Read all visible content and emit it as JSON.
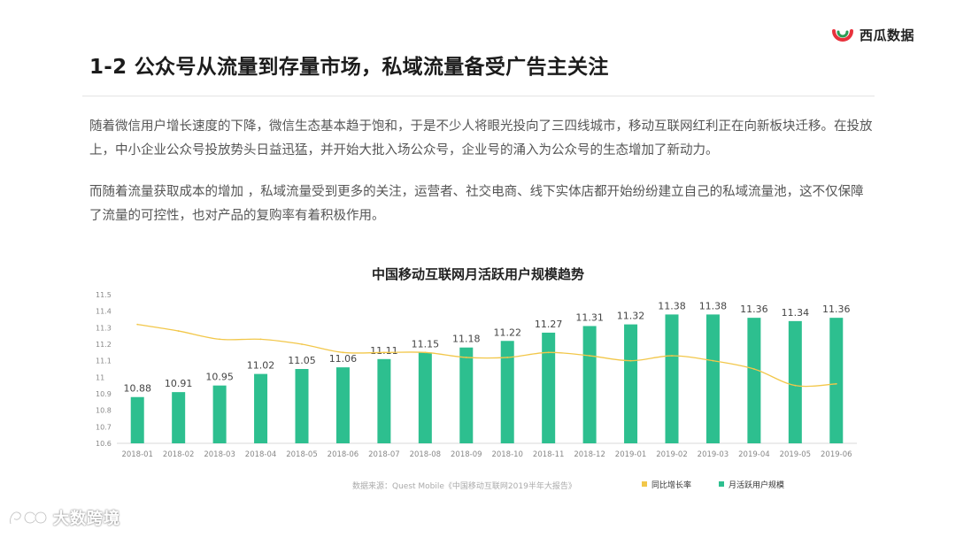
{
  "brand": {
    "name": "西瓜数据",
    "icon": "watermelon-logo-icon"
  },
  "slide": {
    "title": "1-2 公众号从流量到存量市场，私域流量备受广告主关注",
    "paragraphs": [
      "随着微信用户增长速度的下降，微信生态基本趋于饱和，于是不少人将眼光投向了三四线城市，移动互联网红利正在向新板块迁移。在投放上，中小企业公众号投放势头日益迅猛，并开始大批入场公众号，企业号的涌入为公众号的生态增加了新动力。",
      "而随着流量获取成本的增加 ，私域流量受到更多的关注，运营者、社交电商、线下实体店都开始纷纷建立自己的私域流量池，这不仅保障了流量的可控性，也对产品的复购率有着积极作用。"
    ]
  },
  "watermark": {
    "text": "大数跨境",
    "icon": "dashuju-logo-icon"
  },
  "chart_data": {
    "type": "bar",
    "title": "中国移动互联网月活跃用户规模趋势",
    "source": "数据来源：Quest Mobile《中国移动互联网2019半年大报告》",
    "categories": [
      "2018-01",
      "2018-02",
      "2018-03",
      "2018-04",
      "2018-05",
      "2018-06",
      "2018-07",
      "2018-08",
      "2018-09",
      "2018-10",
      "2018-11",
      "2018-12",
      "2019-01",
      "2019-02",
      "2019-03",
      "2019-04",
      "2019-05",
      "2019-06"
    ],
    "series": [
      {
        "name": "月活跃用户规模",
        "type": "bar",
        "color": "#2dbf8f",
        "values": [
          10.88,
          10.91,
          10.95,
          11.02,
          11.05,
          11.06,
          11.11,
          11.15,
          11.18,
          11.22,
          11.27,
          11.31,
          11.32,
          11.38,
          11.38,
          11.36,
          11.34,
          11.36
        ],
        "labels": [
          "10.88",
          "10.91",
          "10.95",
          "11.02",
          "11.05",
          "11.06",
          "11.11",
          "11.15",
          "11.18",
          "11.22",
          "11.27",
          "11.31",
          "11.32",
          "11.38",
          "11.38",
          "11.36",
          "11.34",
          "11.36"
        ]
      },
      {
        "name": "同比增长率",
        "type": "line",
        "color": "#f2c74a",
        "values": [
          11.32,
          11.28,
          11.23,
          11.23,
          11.2,
          11.15,
          11.15,
          11.15,
          11.12,
          11.12,
          11.15,
          11.13,
          11.1,
          11.13,
          11.1,
          11.05,
          10.95,
          10.96
        ]
      }
    ],
    "y_ticks": [
      "10.6",
      "10.7",
      "10.8",
      "10.9",
      "11",
      "11.1",
      "11.2",
      "11.3",
      "11.4",
      "11.5"
    ],
    "ylim": [
      10.6,
      11.5
    ],
    "grid": false,
    "legend": "bottom-right",
    "legend_order": [
      "同比增长率",
      "月活跃用户规模"
    ]
  }
}
